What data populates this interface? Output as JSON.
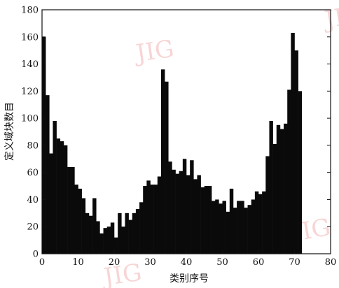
{
  "chart_data": {
    "type": "bar",
    "title": "",
    "xlabel": "类别序号",
    "ylabel": "定义域块数目",
    "xlim": [
      0,
      80
    ],
    "ylim": [
      0,
      180
    ],
    "xticks": [
      0,
      10,
      20,
      30,
      40,
      50,
      60,
      70,
      80
    ],
    "yticks": [
      0,
      20,
      40,
      60,
      80,
      100,
      120,
      140,
      160,
      180
    ],
    "bar_color": "#0a0a0a",
    "grid": false,
    "legend": "none",
    "x": [
      1,
      2,
      3,
      4,
      5,
      6,
      7,
      8,
      9,
      10,
      11,
      12,
      13,
      14,
      15,
      16,
      17,
      18,
      19,
      20,
      21,
      22,
      23,
      24,
      25,
      26,
      27,
      28,
      29,
      30,
      31,
      32,
      33,
      34,
      35,
      36,
      37,
      38,
      39,
      40,
      41,
      42,
      43,
      44,
      45,
      46,
      47,
      48,
      49,
      50,
      51,
      52,
      53,
      54,
      55,
      56,
      57,
      58,
      59,
      60,
      61,
      62,
      63,
      64,
      65,
      66,
      67,
      68,
      69,
      70,
      71,
      72
    ],
    "values": [
      160,
      117,
      74,
      98,
      85,
      83,
      80,
      64,
      64,
      51,
      48,
      41,
      30,
      28,
      41,
      24,
      15,
      19,
      20,
      23,
      12,
      30,
      20,
      30,
      25,
      30,
      33,
      38,
      50,
      54,
      51,
      51,
      57,
      136,
      127,
      68,
      62,
      59,
      61,
      70,
      58,
      69,
      55,
      58,
      49,
      50,
      50,
      39,
      40,
      37,
      39,
      31,
      48,
      34,
      39,
      39,
      34,
      36,
      40,
      46,
      44,
      46,
      72,
      98,
      81,
      95,
      92,
      96,
      121,
      163,
      150,
      120
    ]
  },
  "watermarks": [
    "JIG",
    "JIG",
    "JIG",
    "JIG"
  ]
}
